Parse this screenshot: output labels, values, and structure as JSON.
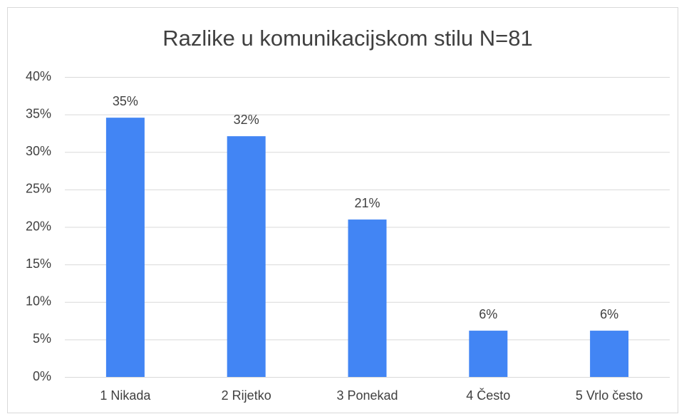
{
  "chart_data": {
    "type": "bar",
    "title": "Razlike u komunikacijskom stilu N=81",
    "categories": [
      "1 Nikada",
      "2 Rijetko",
      "3 Ponekad",
      "4 Često",
      "5 Vrlo često"
    ],
    "values": [
      34.57,
      32.1,
      20.99,
      6.17,
      6.17
    ],
    "value_labels": [
      "35%",
      "32%",
      "21%",
      "6%",
      "6%"
    ],
    "color": "#4285f4",
    "ylim": [
      0,
      40
    ],
    "yticks": [
      {
        "value": 0,
        "label": "0%"
      },
      {
        "value": 5,
        "label": "5%"
      },
      {
        "value": 10,
        "label": "10%"
      },
      {
        "value": 15,
        "label": "15%"
      },
      {
        "value": 20,
        "label": "20%"
      },
      {
        "value": 25,
        "label": "25%"
      },
      {
        "value": 30,
        "label": "30%"
      },
      {
        "value": 35,
        "label": "35%"
      },
      {
        "value": 40,
        "label": "40%"
      }
    ],
    "grid": true
  }
}
